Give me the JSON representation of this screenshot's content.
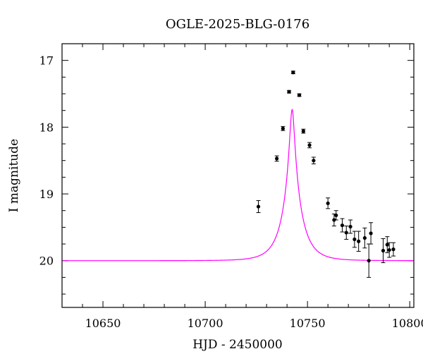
{
  "chart_data": {
    "type": "scatter",
    "title": "OGLE-2025-BLG-0176",
    "xlabel": "HJD - 2450000",
    "ylabel": "I magnitude",
    "xlim": [
      10630,
      10802
    ],
    "ylim": [
      20.7,
      16.75
    ],
    "y_inverted": true,
    "grid": false,
    "xticks": [
      10650,
      10700,
      10750,
      10800
    ],
    "xtick_labels": [
      "10650",
      "10700",
      "10750",
      "10800"
    ],
    "yticks": [
      17,
      18,
      19,
      20
    ],
    "ytick_labels": [
      "17",
      "18",
      "19",
      "20"
    ],
    "colors": {
      "model": "#ff00ff",
      "points": "#000000"
    },
    "model": {
      "name": "",
      "t0": 10742.5,
      "tE": 8.5,
      "u0": 0.125,
      "baseline": 20.0
    },
    "series": [
      {
        "x": [
          10726,
          10735,
          10738,
          10741,
          10743,
          10746,
          10748,
          10751,
          10753,
          10760,
          10763,
          10764,
          10767,
          10769,
          10771,
          10773,
          10775,
          10778,
          10780,
          10781,
          10787,
          10789,
          10790,
          10792
        ],
        "y": [
          19.19,
          18.47,
          18.02,
          17.47,
          17.18,
          17.52,
          18.06,
          18.27,
          18.5,
          19.14,
          19.39,
          19.32,
          19.47,
          19.58,
          19.49,
          19.68,
          19.71,
          19.66,
          20.0,
          19.59,
          19.85,
          19.76,
          19.84,
          19.83
        ],
        "err": [
          0.09,
          0.04,
          0.03,
          0.02,
          0.02,
          0.02,
          0.03,
          0.04,
          0.05,
          0.08,
          0.09,
          0.07,
          0.1,
          0.1,
          0.1,
          0.12,
          0.15,
          0.15,
          0.25,
          0.16,
          0.18,
          0.12,
          0.11,
          0.1
        ]
      }
    ]
  }
}
